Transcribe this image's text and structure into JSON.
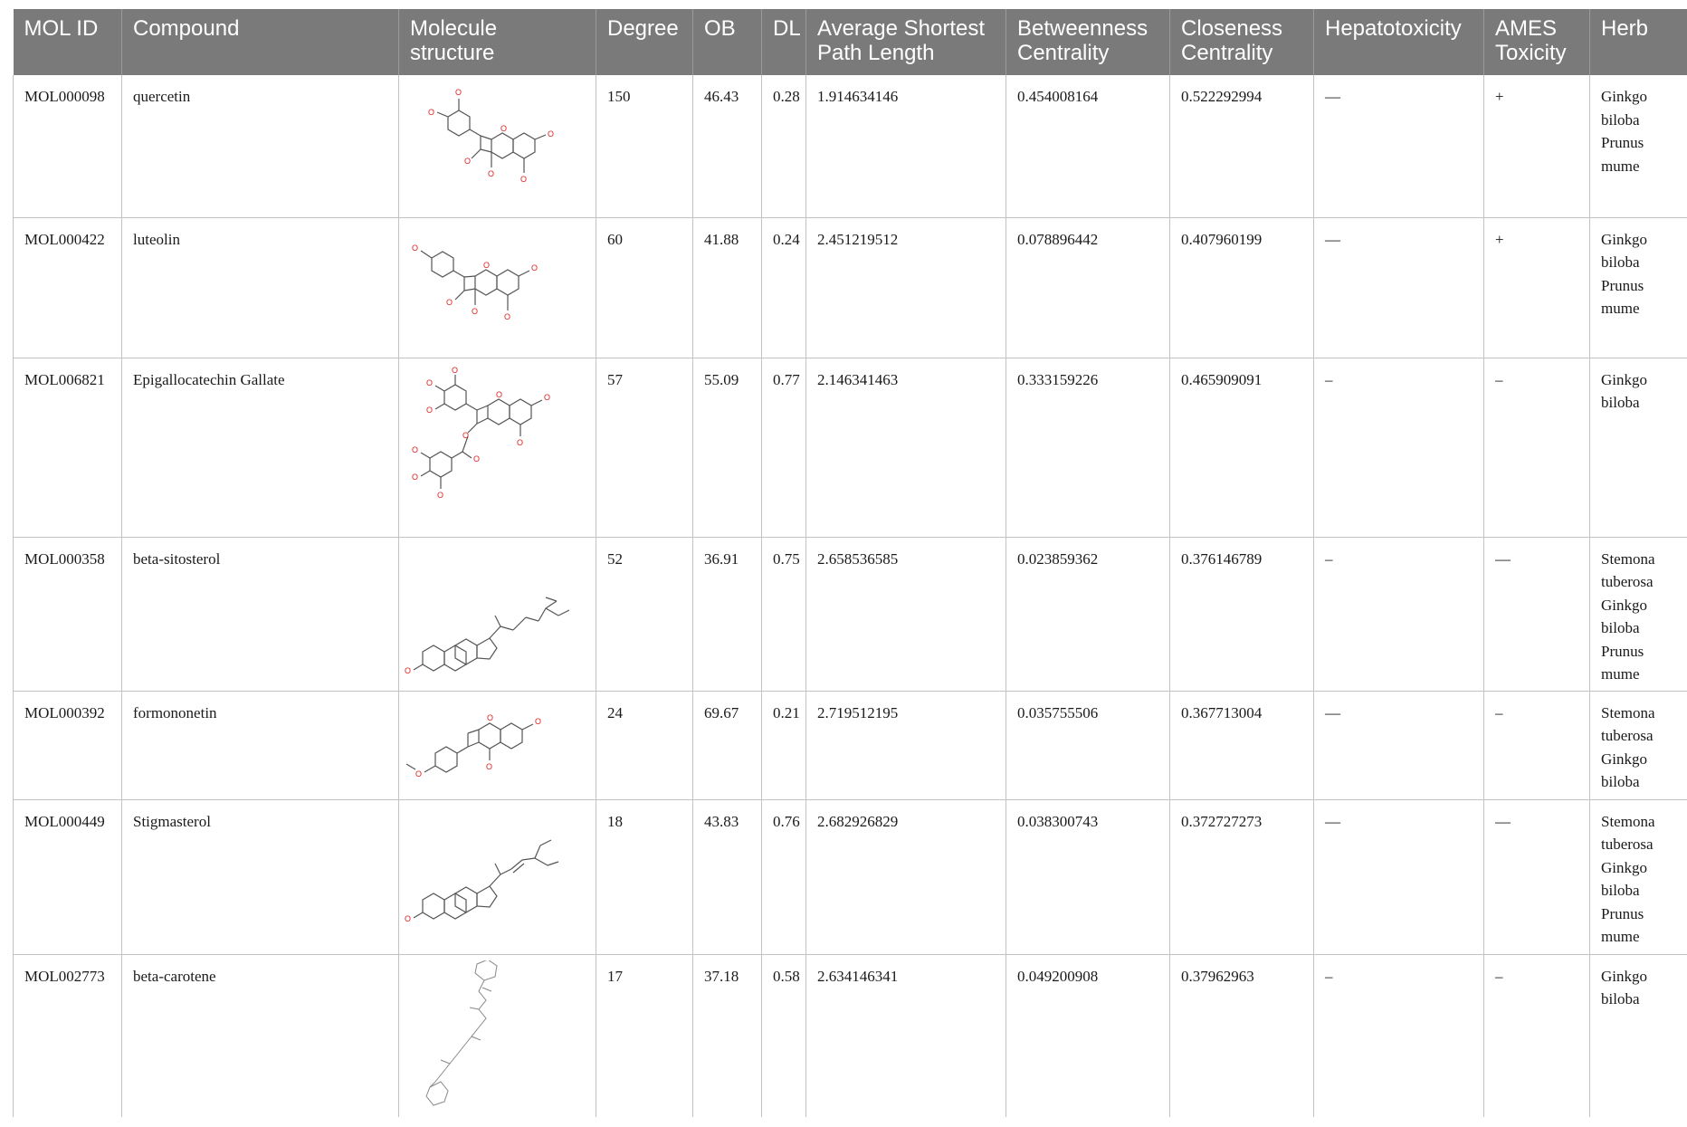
{
  "table": {
    "columns": [
      {
        "key": "mol_id",
        "label": "MOL ID"
      },
      {
        "key": "compound",
        "label": "Compound"
      },
      {
        "key": "structure",
        "label": "Molecule structure"
      },
      {
        "key": "degree",
        "label": "Degree"
      },
      {
        "key": "ob",
        "label": "OB"
      },
      {
        "key": "dl",
        "label": "DL"
      },
      {
        "key": "aspl",
        "label": "Average Shortest Path Length"
      },
      {
        "key": "bc",
        "label": "Betweenness Centrality"
      },
      {
        "key": "cc",
        "label": "Closeness Centrality"
      },
      {
        "key": "hep",
        "label": "Hepatotoxicity"
      },
      {
        "key": "ames",
        "label": "AMES Toxicity"
      },
      {
        "key": "herb",
        "label": "Herb"
      }
    ],
    "rows": [
      {
        "mol_id": "MOL000098",
        "compound": "quercetin",
        "structure": "flavonol-structure-image",
        "degree": "150",
        "ob": "46.43",
        "dl": "0.28",
        "aspl": "1.914634146",
        "bc": "0.454008164",
        "cc": "0.522292994",
        "hep": "—",
        "ames": "+",
        "herb": [
          "Ginkgo",
          "biloba",
          "Prunus",
          "mume"
        ]
      },
      {
        "mol_id": "MOL000422",
        "compound": "luteolin",
        "structure": "flavone-structure-image",
        "degree": "60",
        "ob": "41.88",
        "dl": "0.24",
        "aspl": "2.451219512",
        "bc": "0.078896442",
        "cc": "0.407960199",
        "hep": "—",
        "ames": "+",
        "herb": [
          "Ginkgo",
          "biloba",
          "Prunus",
          "mume"
        ]
      },
      {
        "mol_id": "MOL006821",
        "compound": "Epigallocatechin Gallate",
        "structure": "catechin-gallate-structure-image",
        "degree": "57",
        "ob": "55.09",
        "dl": "0.77",
        "aspl": "2.146341463",
        "bc": "0.333159226",
        "cc": "0.465909091",
        "hep": "–",
        "ames": "–",
        "herb": [
          "Ginkgo",
          "biloba"
        ]
      },
      {
        "mol_id": "MOL000358",
        "compound": "beta-sitosterol",
        "structure": "sterol-structure-image",
        "degree": "52",
        "ob": "36.91",
        "dl": "0.75",
        "aspl": "2.658536585",
        "bc": "0.023859362",
        "cc": "0.376146789",
        "hep": "–",
        "ames": "—",
        "herb": [
          "Stemona",
          "tuberosa",
          "Ginkgo",
          "biloba",
          "Prunus",
          "mume"
        ]
      },
      {
        "mol_id": "MOL000392",
        "compound": "formononetin",
        "structure": "isoflavone-structure-image",
        "degree": "24",
        "ob": "69.67",
        "dl": "0.21",
        "aspl": "2.719512195",
        "bc": "0.035755506",
        "cc": "0.367713004",
        "hep": "—",
        "ames": "–",
        "herb": [
          "Stemona",
          "tuberosa",
          "Ginkgo",
          "biloba"
        ]
      },
      {
        "mol_id": "MOL000449",
        "compound": "Stigmasterol",
        "structure": "sterol-structure-image",
        "degree": "18",
        "ob": "43.83",
        "dl": "0.76",
        "aspl": "2.682926829",
        "bc": "0.038300743",
        "cc": "0.372727273",
        "hep": "—",
        "ames": "—",
        "herb": [
          "Stemona",
          "tuberosa",
          "Ginkgo",
          "biloba",
          "Prunus",
          "mume"
        ]
      },
      {
        "mol_id": "MOL002773",
        "compound": "beta-carotene",
        "structure": "carotenoid-structure-image",
        "degree": "17",
        "ob": "37.18",
        "dl": "0.58",
        "aspl": "2.634146341",
        "bc": "0.049200908",
        "cc": "0.37962963",
        "hep": "–",
        "ames": "–",
        "herb": [
          "Ginkgo",
          "biloba"
        ]
      }
    ]
  },
  "colors": {
    "header_bg": "#7a7a7a",
    "header_text": "#ffffff",
    "grid": "#c2c2c2",
    "oxygen": "#e02020"
  }
}
